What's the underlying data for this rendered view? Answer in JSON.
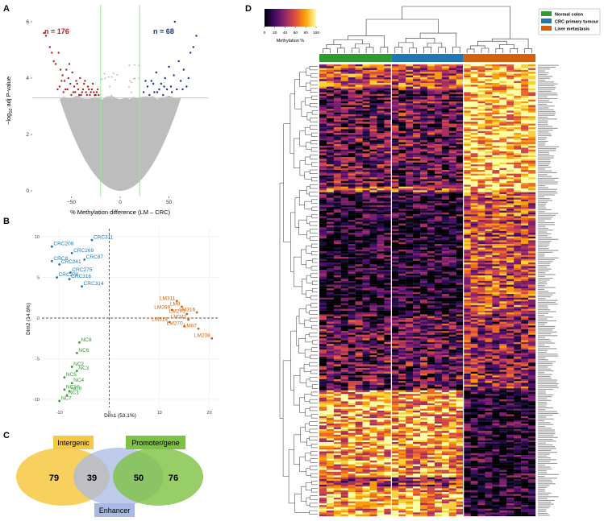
{
  "colors": {
    "lm": "#d35f0b",
    "crc": "#1f78b4",
    "nc": "#2f9a2f",
    "hyper": "#b22222",
    "hypo": "#1f2f8c",
    "cloud": "#bdbdbd",
    "guide": "#90ee90",
    "intergenic": "#f7c842",
    "enhancer": "#a9b9e6",
    "promoter": "#7dc242"
  },
  "chart_data": [
    {
      "panel": "A",
      "type": "scatter",
      "title": "",
      "xlabel": "% Methylation difference (LM – CRC)",
      "ylabel": "-log10 adj P-value",
      "ylabel_parts": {
        "pre": "−log",
        "sub": "10",
        "post": " adj P-value"
      },
      "xticks": [
        -50,
        0,
        50
      ],
      "xtick_labels": [
        "−50",
        "0",
        "50"
      ],
      "yticks": [
        0,
        2,
        4,
        6
      ],
      "xlim": [
        -90,
        90
      ],
      "ylim": [
        -0.2,
        6.6
      ],
      "threshold_x": [
        -20,
        20
      ],
      "threshold_y": 3.3,
      "count_left": "n = 176",
      "count_right": "n = 68",
      "sig_hyper": [
        [
          -78,
          5.6
        ],
        [
          -76,
          5.5
        ],
        [
          -72,
          5.1
        ],
        [
          -70,
          4.9
        ],
        [
          -68,
          4.6
        ],
        [
          -66,
          4.5
        ],
        [
          -63,
          4.9
        ],
        [
          -61,
          4.3
        ],
        [
          -59,
          4.1
        ],
        [
          -57,
          3.9
        ],
        [
          -55,
          4.3
        ],
        [
          -53,
          4.0
        ],
        [
          -51,
          3.8
        ],
        [
          -49,
          4.2
        ],
        [
          -47,
          3.7
        ],
        [
          -45,
          3.9
        ],
        [
          -43,
          3.6
        ],
        [
          -41,
          4.0
        ],
        [
          -39,
          3.5
        ],
        [
          -37,
          3.8
        ],
        [
          -35,
          3.5
        ],
        [
          -33,
          3.7
        ],
        [
          -31,
          3.4
        ],
        [
          -29,
          3.6
        ],
        [
          -27,
          3.5
        ],
        [
          -25,
          3.4
        ],
        [
          -23,
          3.6
        ],
        [
          -62,
          3.7
        ],
        [
          -58,
          3.5
        ],
        [
          -54,
          3.6
        ],
        [
          -50,
          3.4
        ],
        [
          -46,
          3.5
        ],
        [
          -42,
          3.4
        ],
        [
          -38,
          3.6
        ],
        [
          -34,
          3.4
        ],
        [
          -30,
          3.5
        ],
        [
          -26,
          3.4
        ],
        [
          -64,
          3.6
        ],
        [
          -60,
          3.9
        ],
        [
          -48,
          3.5
        ],
        [
          -44,
          3.8
        ],
        [
          -40,
          3.4
        ],
        [
          -36,
          3.9
        ],
        [
          -52,
          4.5
        ],
        [
          -56,
          3.6
        ],
        [
          -32,
          3.6
        ],
        [
          -28,
          3.8
        ],
        [
          -24,
          3.5
        ],
        [
          -22,
          3.4
        ]
      ],
      "sig_hypo": [
        [
          28,
          3.7
        ],
        [
          30,
          3.4
        ],
        [
          32,
          3.9
        ],
        [
          35,
          3.5
        ],
        [
          37,
          4.2
        ],
        [
          40,
          3.6
        ],
        [
          42,
          3.8
        ],
        [
          44,
          3.4
        ],
        [
          46,
          4.0
        ],
        [
          48,
          3.6
        ],
        [
          50,
          4.4
        ],
        [
          52,
          3.7
        ],
        [
          55,
          4.1
        ],
        [
          58,
          3.6
        ],
        [
          60,
          4.6
        ],
        [
          62,
          3.9
        ],
        [
          65,
          4.3
        ],
        [
          68,
          3.7
        ],
        [
          72,
          4.9
        ],
        [
          75,
          5.1
        ],
        [
          78,
          5.5
        ],
        [
          56,
          6.0
        ],
        [
          24,
          3.5
        ],
        [
          26,
          3.9
        ],
        [
          34,
          3.8
        ],
        [
          38,
          3.5
        ],
        [
          45,
          3.7
        ],
        [
          53,
          3.5
        ],
        [
          64,
          3.6
        ],
        [
          70,
          4.0
        ]
      ]
    },
    {
      "panel": "B",
      "type": "scatter",
      "xlabel": "Dim1 (53.1%)",
      "ylabel": "Dim2 (14.6%)",
      "xticks": [
        -10,
        0,
        10,
        20
      ],
      "yticks": [
        -10,
        -5,
        0,
        5,
        10
      ],
      "xlim": [
        -13.5,
        22
      ],
      "ylim": [
        -11,
        11
      ],
      "crc_points": [
        {
          "label": "CRC208",
          "x": -11.5,
          "y": 8.8
        },
        {
          "label": "CRC311",
          "x": -3.5,
          "y": 9.6
        },
        {
          "label": "CRC269",
          "x": -7.5,
          "y": 8.0
        },
        {
          "label": "CRC87",
          "x": -5.0,
          "y": 7.2
        },
        {
          "label": "CRC8",
          "x": -11.5,
          "y": 7.0
        },
        {
          "label": "CRC241",
          "x": -10.0,
          "y": 6.6
        },
        {
          "label": "CRC275",
          "x": -7.8,
          "y": 5.6
        },
        {
          "label": "CRC270",
          "x": -10.5,
          "y": 5.0
        },
        {
          "label": "CRC316",
          "x": -8.0,
          "y": 4.8
        },
        {
          "label": "CRC314",
          "x": -5.5,
          "y": 3.9
        }
      ],
      "lm_points": [
        {
          "label": "LM311",
          "x": 13.5,
          "y": 2.1
        },
        {
          "label": "LM8",
          "x": 14.5,
          "y": 1.4
        },
        {
          "label": "LM269",
          "x": 12.5,
          "y": 1.0
        },
        {
          "label": "LM275",
          "x": 15.5,
          "y": 0.5
        },
        {
          "label": "LM316",
          "x": 17.5,
          "y": 0.7
        },
        {
          "label": "LM314",
          "x": 12.0,
          "y": -0.5
        },
        {
          "label": "LM241",
          "x": 15.8,
          "y": -0.2
        },
        {
          "label": "LM270",
          "x": 15.0,
          "y": -1.0
        },
        {
          "label": "LM87",
          "x": 17.8,
          "y": -1.3
        },
        {
          "label": "LM208",
          "x": 20.5,
          "y": -2.5
        }
      ],
      "nc_points": [
        {
          "label": "NC8",
          "x": -6.0,
          "y": -3.0
        },
        {
          "label": "NC6",
          "x": -6.5,
          "y": -4.3
        },
        {
          "label": "NC2",
          "x": -7.5,
          "y": -6.0
        },
        {
          "label": "NC3",
          "x": -6.5,
          "y": -6.5
        },
        {
          "label": "NC5",
          "x": -9.0,
          "y": -7.3
        },
        {
          "label": "NC4",
          "x": -7.5,
          "y": -8.0
        },
        {
          "label": "NC10",
          "x": -9.0,
          "y": -8.8
        },
        {
          "label": "NC9",
          "x": -8.0,
          "y": -9.0
        },
        {
          "label": "NC1",
          "x": -8.5,
          "y": -9.5
        },
        {
          "label": "NC7",
          "x": -10.0,
          "y": -10.2
        }
      ]
    },
    {
      "panel": "C",
      "type": "venn",
      "sets": [
        "Intergenic",
        "Enhancer",
        "Promoter/gene"
      ],
      "intergenic_only": "79",
      "intergenic_enhancer": "39",
      "enhancer_promoter": "50",
      "promoter_only": "76"
    },
    {
      "panel": "D",
      "type": "heatmap",
      "scale_ticks": [
        "0",
        "20",
        "40",
        "60",
        "80",
        "100"
      ],
      "scale_title": "Methylation %",
      "groups": [
        {
          "name": "Normal colon",
          "key": "nc",
          "columns": 10
        },
        {
          "name": "CRC primary tumour",
          "key": "crc",
          "columns": 10
        },
        {
          "name": "Liver metastasis",
          "key": "lm",
          "columns": 10
        }
      ],
      "row_count": 244,
      "value_range": [
        0,
        100
      ]
    }
  ],
  "panel_labels": {
    "a": "A",
    "b": "B",
    "c": "C",
    "d": "D"
  }
}
